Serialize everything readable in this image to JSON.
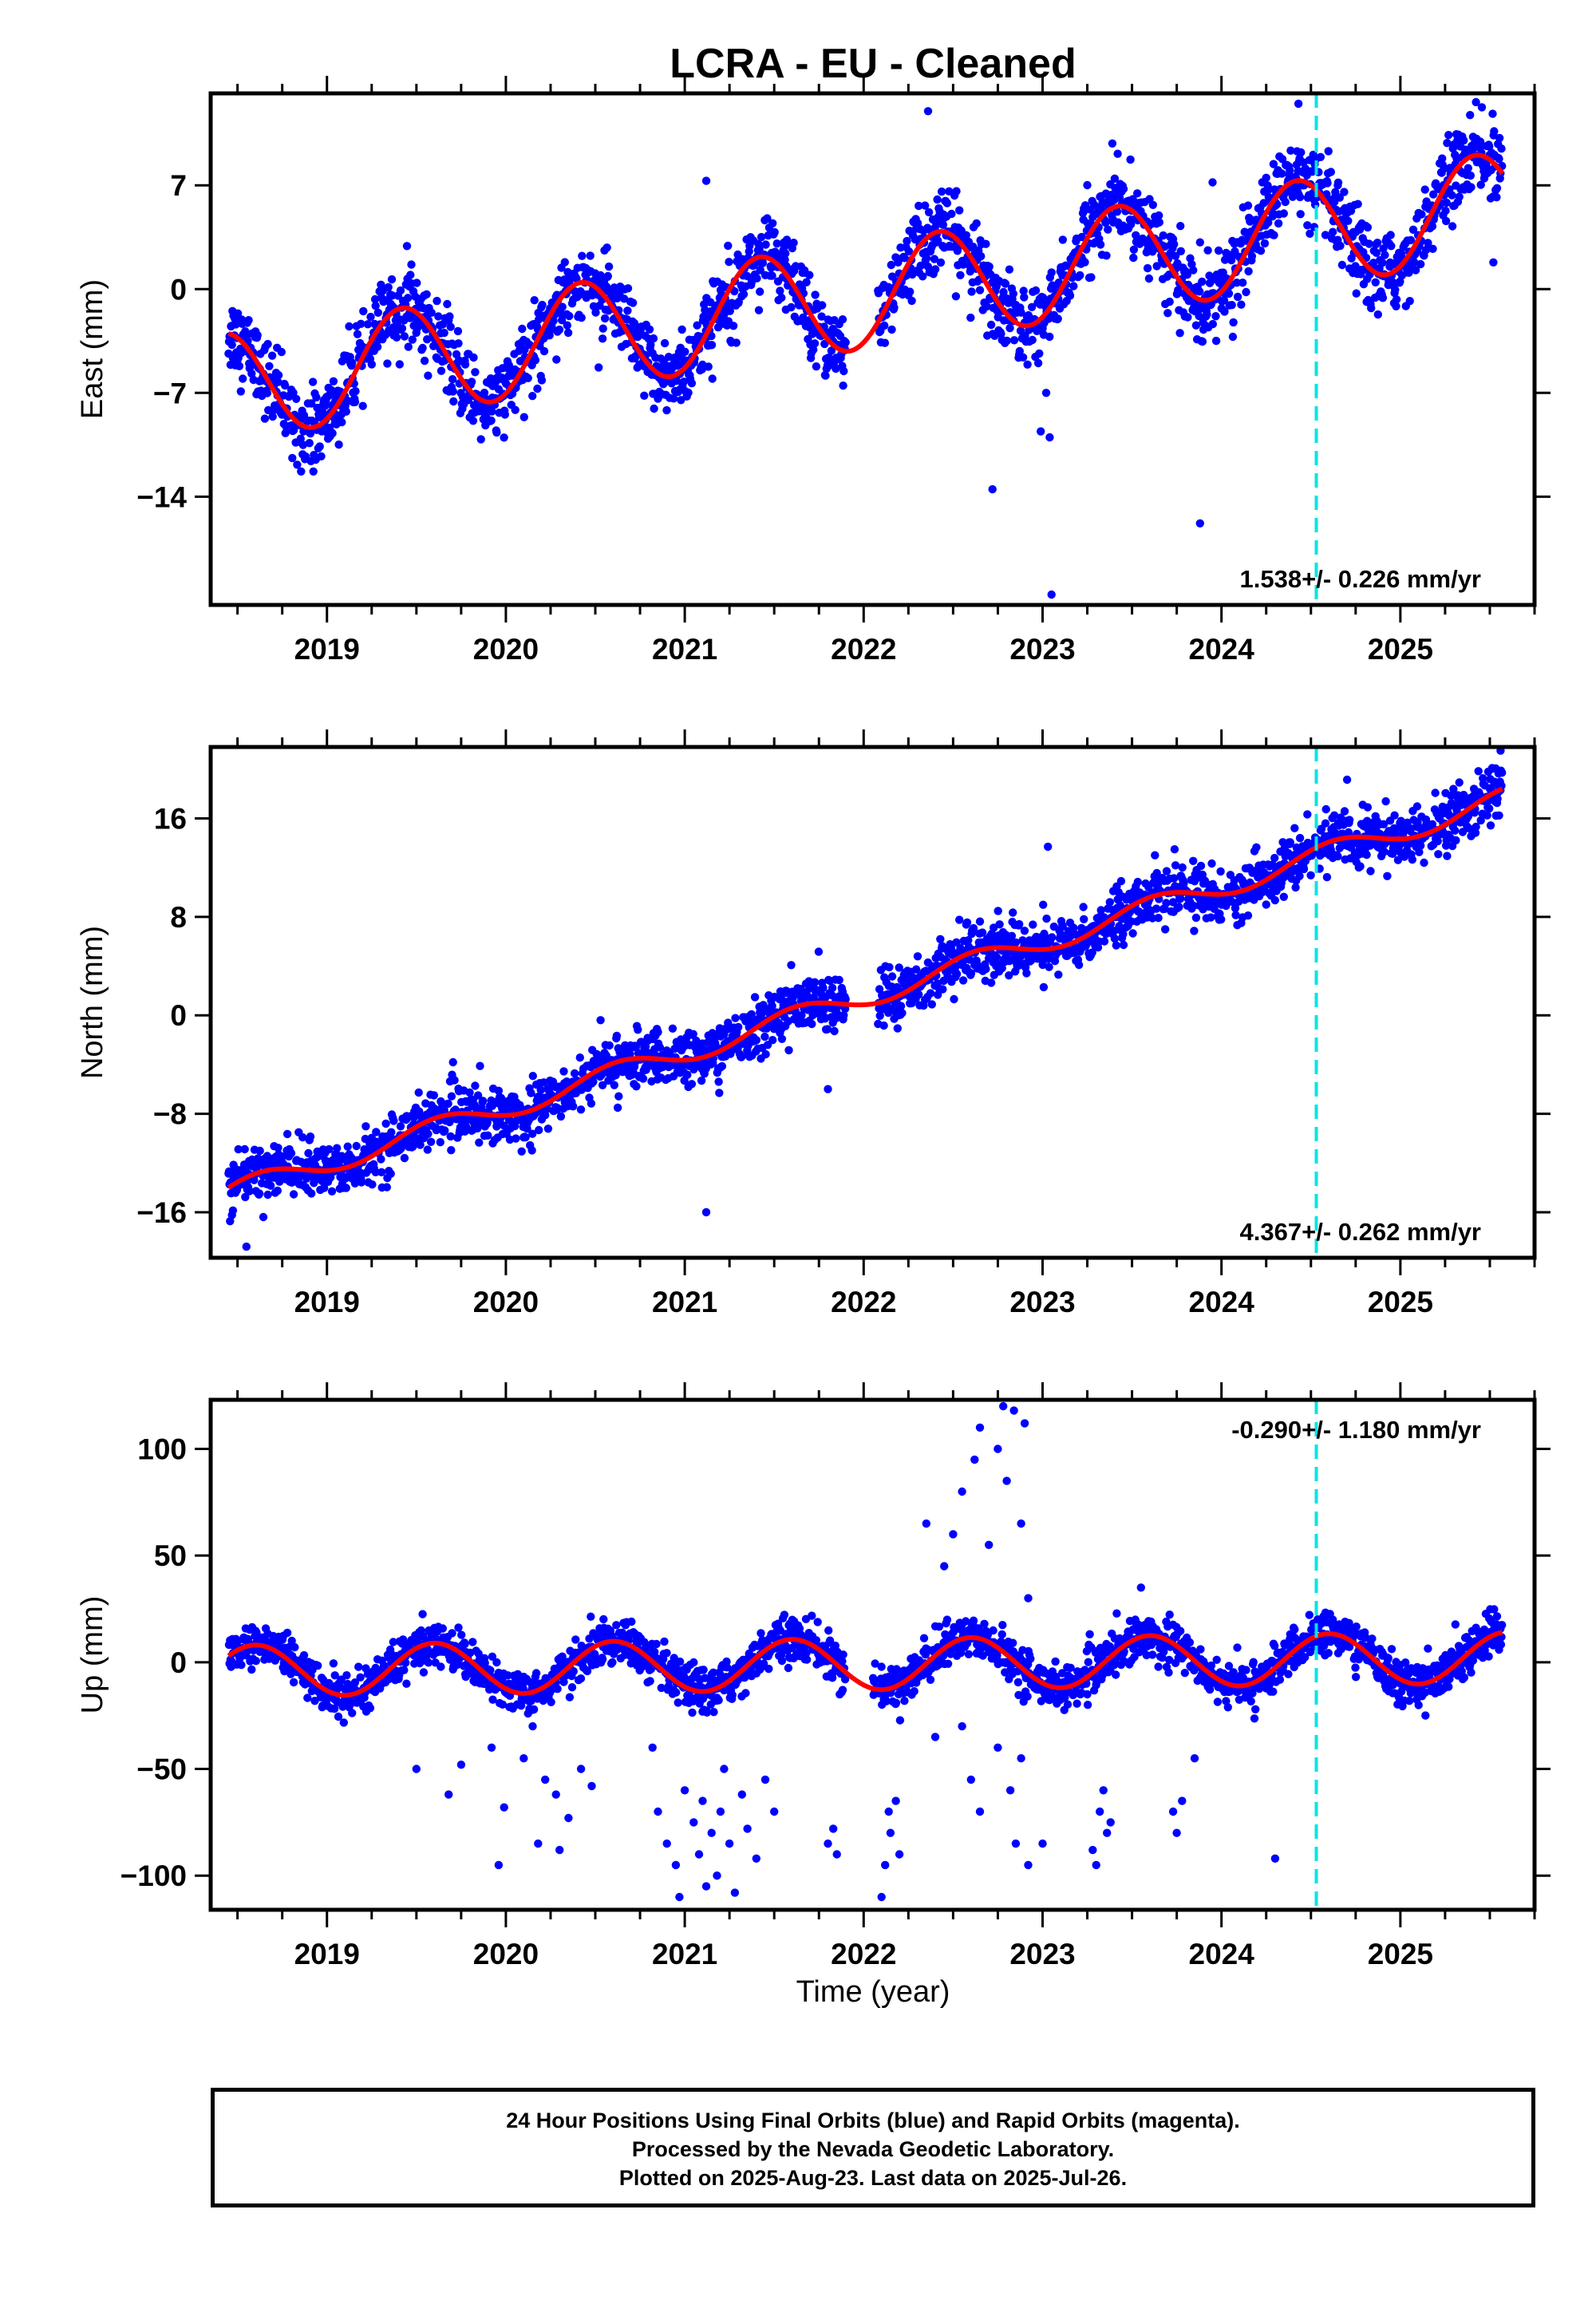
{
  "title": "LCRA  - EU - Cleaned",
  "colors": {
    "data": "#0000ff",
    "model": "#ff0000",
    "break_line": "#00e5e5",
    "rapid": "#ff00ff"
  },
  "xlabel": "Time (year)",
  "footer": {
    "line1": "24 Hour Positions Using Final Orbits (blue) and Rapid Orbits (magenta).",
    "line2": "Processed by the Nevada Geodetic Laboratory.",
    "line3": "Plotted on 2025-Aug-23. Last data on 2025-Jul-26."
  },
  "chart_data": [
    {
      "type": "scatter",
      "component": "east",
      "ylabel": "East (mm)",
      "xlim": [
        2018.35,
        2025.75
      ],
      "ylim": [
        -21.3,
        13.2
      ],
      "xticks": [
        2019,
        2020,
        2021,
        2022,
        2023,
        2024,
        2025
      ],
      "yticks": [
        -14,
        -7,
        0,
        7
      ],
      "grid": false,
      "rate_label": "1.538+/- 0.226 mm/yr",
      "rate_label_position": "bottom-right",
      "velocity": 1.538,
      "velocity_sigma": 0.226,
      "seasonal_amplitude": 3.6,
      "seasonal_peak_phase": 0.42,
      "scatter_sigma": 1.3,
      "start_year": 2018.45,
      "end_year": 2025.57,
      "model_start_value": -3.0,
      "model_end_value": 7.8,
      "step_year": 2024.53,
      "step_size": 0,
      "gap_years": [
        [
          2021.9,
          2022.08
        ]
      ],
      "outliers": [
        {
          "x": 2022.72,
          "y": -13.5
        },
        {
          "x": 2022.99,
          "y": -9.6
        },
        {
          "x": 2023.04,
          "y": -10.0
        },
        {
          "x": 2023.05,
          "y": -20.6
        },
        {
          "x": 2023.02,
          "y": -7.0
        },
        {
          "x": 2023.88,
          "y": -15.8
        },
        {
          "x": 2022.36,
          "y": 12.0
        },
        {
          "x": 2024.43,
          "y": 12.5
        },
        {
          "x": 2021.12,
          "y": 7.3
        },
        {
          "x": 2024.65,
          "y": 7.0
        },
        {
          "x": 2025.52,
          "y": 1.8
        },
        {
          "x": 2023.95,
          "y": 7.2
        }
      ]
    },
    {
      "type": "scatter",
      "component": "north",
      "ylabel": "North (mm)",
      "xlim": [
        2018.35,
        2025.75
      ],
      "ylim": [
        -19.7,
        21.8
      ],
      "xticks": [
        2019,
        2020,
        2021,
        2022,
        2023,
        2024,
        2025
      ],
      "yticks": [
        -16,
        -8,
        0,
        8,
        16
      ],
      "grid": false,
      "rate_label": "4.367+/- 0.262 mm/yr",
      "rate_label_position": "bottom-right",
      "velocity": 4.367,
      "velocity_sigma": 0.262,
      "seasonal_amplitude": 0.9,
      "seasonal_peak_phase": 0.62,
      "scatter_sigma": 1.1,
      "start_year": 2018.45,
      "end_year": 2025.57,
      "model_start_value": -14.0,
      "model_end_value": 18.4,
      "step_year": 2024.53,
      "step_size": 0,
      "gap_years": [
        [
          2021.9,
          2022.08
        ]
      ],
      "outliers": [
        {
          "x": 2021.12,
          "y": -16.0
        },
        {
          "x": 2023.03,
          "y": 13.7
        },
        {
          "x": 2025.56,
          "y": 21.5
        },
        {
          "x": 2018.55,
          "y": -18.8
        },
        {
          "x": 2021.8,
          "y": -6.0
        }
      ]
    },
    {
      "type": "scatter",
      "component": "up",
      "ylabel": "Up (mm)",
      "xlim": [
        2018.35,
        2025.75
      ],
      "ylim": [
        -116,
        123
      ],
      "xticks": [
        2019,
        2020,
        2021,
        2022,
        2023,
        2024,
        2025
      ],
      "yticks": [
        -100,
        -50,
        0,
        50,
        100
      ],
      "grid": false,
      "rate_label": "-0.290+/- 1.180 mm/yr",
      "rate_label_position": "top-right",
      "velocity": -0.29,
      "velocity_sigma": 1.18,
      "seasonal_amplitude": 12,
      "seasonal_peak_phase": 0.6,
      "scatter_sigma": 5,
      "start_year": 2018.45,
      "end_year": 2025.57,
      "model_start_value": 3,
      "model_end_value": 14,
      "step_year": 2024.53,
      "step_size": 0,
      "gap_years": [
        [
          2021.9,
          2022.05
        ]
      ],
      "outliers": [
        {
          "x": 2019.5,
          "y": -50
        },
        {
          "x": 2019.68,
          "y": -62
        },
        {
          "x": 2019.75,
          "y": -48
        },
        {
          "x": 2019.92,
          "y": -40
        },
        {
          "x": 2019.96,
          "y": -95
        },
        {
          "x": 2019.99,
          "y": -68
        },
        {
          "x": 2020.1,
          "y": -45
        },
        {
          "x": 2020.18,
          "y": -85
        },
        {
          "x": 2020.22,
          "y": -55
        },
        {
          "x": 2020.28,
          "y": -62
        },
        {
          "x": 2020.35,
          "y": -73
        },
        {
          "x": 2020.42,
          "y": -50
        },
        {
          "x": 2020.48,
          "y": -58
        },
        {
          "x": 2020.3,
          "y": -88
        },
        {
          "x": 2020.15,
          "y": -30
        },
        {
          "x": 2020.82,
          "y": -40
        },
        {
          "x": 2020.85,
          "y": -70
        },
        {
          "x": 2020.9,
          "y": -85
        },
        {
          "x": 2020.95,
          "y": -95
        },
        {
          "x": 2020.97,
          "y": -110
        },
        {
          "x": 2021.0,
          "y": -60
        },
        {
          "x": 2021.05,
          "y": -75
        },
        {
          "x": 2021.08,
          "y": -90
        },
        {
          "x": 2021.1,
          "y": -65
        },
        {
          "x": 2021.15,
          "y": -80
        },
        {
          "x": 2021.18,
          "y": -100
        },
        {
          "x": 2021.2,
          "y": -70
        },
        {
          "x": 2021.25,
          "y": -85
        },
        {
          "x": 2021.28,
          "y": -108
        },
        {
          "x": 2021.32,
          "y": -62
        },
        {
          "x": 2021.35,
          "y": -78
        },
        {
          "x": 2021.4,
          "y": -92
        },
        {
          "x": 2021.45,
          "y": -55
        },
        {
          "x": 2021.5,
          "y": -70
        },
        {
          "x": 2021.12,
          "y": -105
        },
        {
          "x": 2021.22,
          "y": -50
        },
        {
          "x": 2021.8,
          "y": -85
        },
        {
          "x": 2021.85,
          "y": -90
        },
        {
          "x": 2021.83,
          "y": -78
        },
        {
          "x": 2022.1,
          "y": -110
        },
        {
          "x": 2022.12,
          "y": -95
        },
        {
          "x": 2022.15,
          "y": -80
        },
        {
          "x": 2022.18,
          "y": -65
        },
        {
          "x": 2022.2,
          "y": -90
        },
        {
          "x": 2022.14,
          "y": -70
        },
        {
          "x": 2022.35,
          "y": 65
        },
        {
          "x": 2022.45,
          "y": 45
        },
        {
          "x": 2022.5,
          "y": 60
        },
        {
          "x": 2022.55,
          "y": 80
        },
        {
          "x": 2022.62,
          "y": 95
        },
        {
          "x": 2022.65,
          "y": 110
        },
        {
          "x": 2022.7,
          "y": 55
        },
        {
          "x": 2022.75,
          "y": 100
        },
        {
          "x": 2022.78,
          "y": 120
        },
        {
          "x": 2022.8,
          "y": 85
        },
        {
          "x": 2022.84,
          "y": 118
        },
        {
          "x": 2022.88,
          "y": 65
        },
        {
          "x": 2022.9,
          "y": 112
        },
        {
          "x": 2022.92,
          "y": 30
        },
        {
          "x": 2022.6,
          "y": -55
        },
        {
          "x": 2022.65,
          "y": -70
        },
        {
          "x": 2022.75,
          "y": -40
        },
        {
          "x": 2022.82,
          "y": -60
        },
        {
          "x": 2022.85,
          "y": -85
        },
        {
          "x": 2022.88,
          "y": -45
        },
        {
          "x": 2022.92,
          "y": -95
        },
        {
          "x": 2023.0,
          "y": -85
        },
        {
          "x": 2022.4,
          "y": -35
        },
        {
          "x": 2022.55,
          "y": -30
        },
        {
          "x": 2023.28,
          "y": -88
        },
        {
          "x": 2023.3,
          "y": -95
        },
        {
          "x": 2023.32,
          "y": -70
        },
        {
          "x": 2023.34,
          "y": -60
        },
        {
          "x": 2023.36,
          "y": -80
        },
        {
          "x": 2023.38,
          "y": -75
        },
        {
          "x": 2023.73,
          "y": -70
        },
        {
          "x": 2023.75,
          "y": -80
        },
        {
          "x": 2023.78,
          "y": -65
        },
        {
          "x": 2023.85,
          "y": -45
        },
        {
          "x": 2024.3,
          "y": -92
        },
        {
          "x": 2023.55,
          "y": 35
        }
      ]
    }
  ]
}
